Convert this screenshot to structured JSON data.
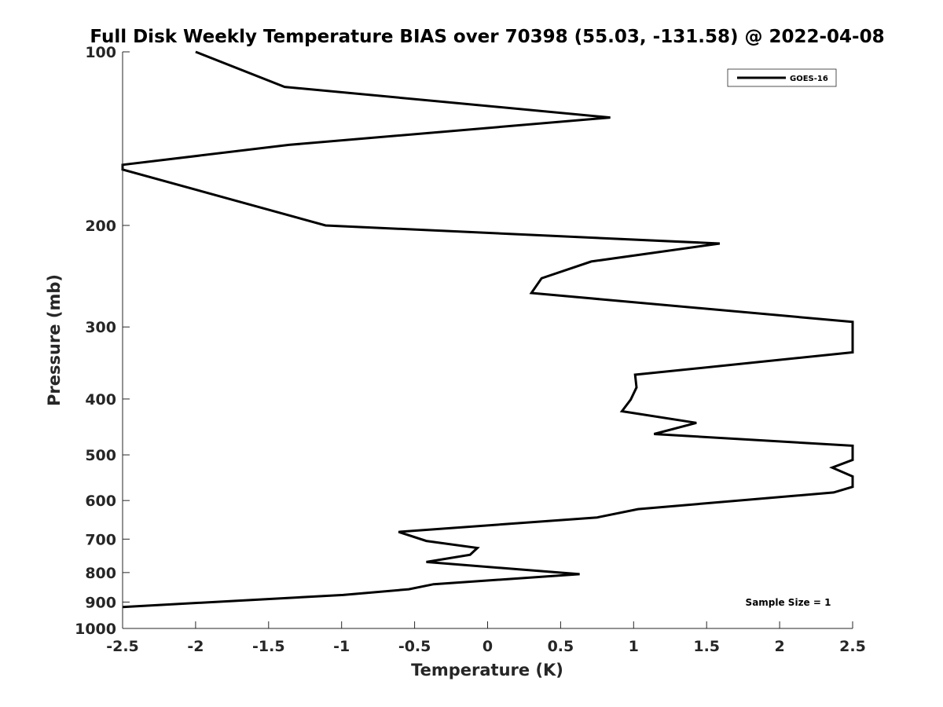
{
  "chart_data": {
    "type": "line",
    "title": "Full Disk Weekly Temperature BIAS over 70398 (55.03, -131.58) @ 2022-04-08",
    "xlabel": "Temperature (K)",
    "ylabel": "Pressure (mb)",
    "xlim": [
      -2.5,
      2.5
    ],
    "ylim": [
      100,
      1000
    ],
    "yscale": "log",
    "y_reversed": true,
    "grid": false,
    "legend_position": "top-right",
    "x_ticks": [
      -2.5,
      -2,
      -1.5,
      -1,
      -0.5,
      0,
      0.5,
      1,
      1.5,
      2,
      2.5
    ],
    "x_tick_labels": [
      "-2.5",
      "-2",
      "-1.5",
      "-1",
      "-0.5",
      "0",
      "0.5",
      "1",
      "1.5",
      "2",
      "2.5"
    ],
    "y_ticks": [
      100,
      200,
      300,
      400,
      500,
      600,
      700,
      800,
      900,
      1000
    ],
    "y_tick_labels": [
      "100",
      "200",
      "300",
      "400",
      "500",
      "600",
      "700",
      "800",
      "900",
      "1000"
    ],
    "series": [
      {
        "name": "GOES-16",
        "color": "#000000",
        "points": [
          {
            "x": -2.0,
            "p": 100
          },
          {
            "x": -1.39,
            "p": 115
          },
          {
            "x": 0.84,
            "p": 130
          },
          {
            "x": -1.36,
            "p": 145
          },
          {
            "x": -2.5,
            "p": 157
          },
          {
            "x": -2.5,
            "p": 160
          },
          {
            "x": -1.11,
            "p": 200
          },
          {
            "x": 1.59,
            "p": 215
          },
          {
            "x": 0.71,
            "p": 231
          },
          {
            "x": 0.37,
            "p": 247
          },
          {
            "x": 0.3,
            "p": 262
          },
          {
            "x": 2.5,
            "p": 294
          },
          {
            "x": 2.5,
            "p": 332
          },
          {
            "x": 1.86,
            "p": 345
          },
          {
            "x": 1.01,
            "p": 363
          },
          {
            "x": 1.02,
            "p": 382
          },
          {
            "x": 0.98,
            "p": 401
          },
          {
            "x": 0.92,
            "p": 420
          },
          {
            "x": 1.43,
            "p": 440
          },
          {
            "x": 1.14,
            "p": 460
          },
          {
            "x": 2.5,
            "p": 482
          },
          {
            "x": 2.5,
            "p": 510
          },
          {
            "x": 2.36,
            "p": 526
          },
          {
            "x": 2.5,
            "p": 545
          },
          {
            "x": 2.5,
            "p": 568
          },
          {
            "x": 2.37,
            "p": 581
          },
          {
            "x": 1.03,
            "p": 621
          },
          {
            "x": 0.75,
            "p": 642
          },
          {
            "x": -0.61,
            "p": 680
          },
          {
            "x": -0.42,
            "p": 705
          },
          {
            "x": -0.07,
            "p": 725
          },
          {
            "x": -0.12,
            "p": 745
          },
          {
            "x": -0.42,
            "p": 767
          },
          {
            "x": 0.63,
            "p": 805
          },
          {
            "x": -0.37,
            "p": 838
          },
          {
            "x": -0.54,
            "p": 855
          },
          {
            "x": -0.99,
            "p": 875
          },
          {
            "x": -2.5,
            "p": 918
          }
        ]
      }
    ],
    "legend": [
      "GOES-16"
    ],
    "annotation": "Sample Size = 1"
  }
}
